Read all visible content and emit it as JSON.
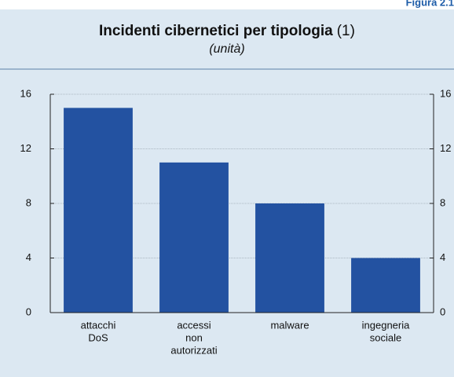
{
  "figure_label": "Figura 2.1",
  "chart_data": {
    "type": "bar",
    "title": "Incidenti cibernetici per tipologia",
    "title_note": "(1)",
    "subtitle": "(unità)",
    "categories": [
      [
        "attacchi",
        "DoS"
      ],
      [
        "accessi",
        "non",
        "autorizzati"
      ],
      [
        "malware"
      ],
      [
        "ingegneria",
        "sociale"
      ]
    ],
    "values": [
      15,
      11,
      8,
      4
    ],
    "color": "#2352a1",
    "ylim": [
      0,
      16
    ],
    "yticks": [
      0,
      4,
      8,
      12,
      16
    ],
    "y2lim": [
      0,
      16
    ],
    "y2ticks": [
      0,
      4,
      8,
      12,
      16
    ],
    "grid": true
  }
}
